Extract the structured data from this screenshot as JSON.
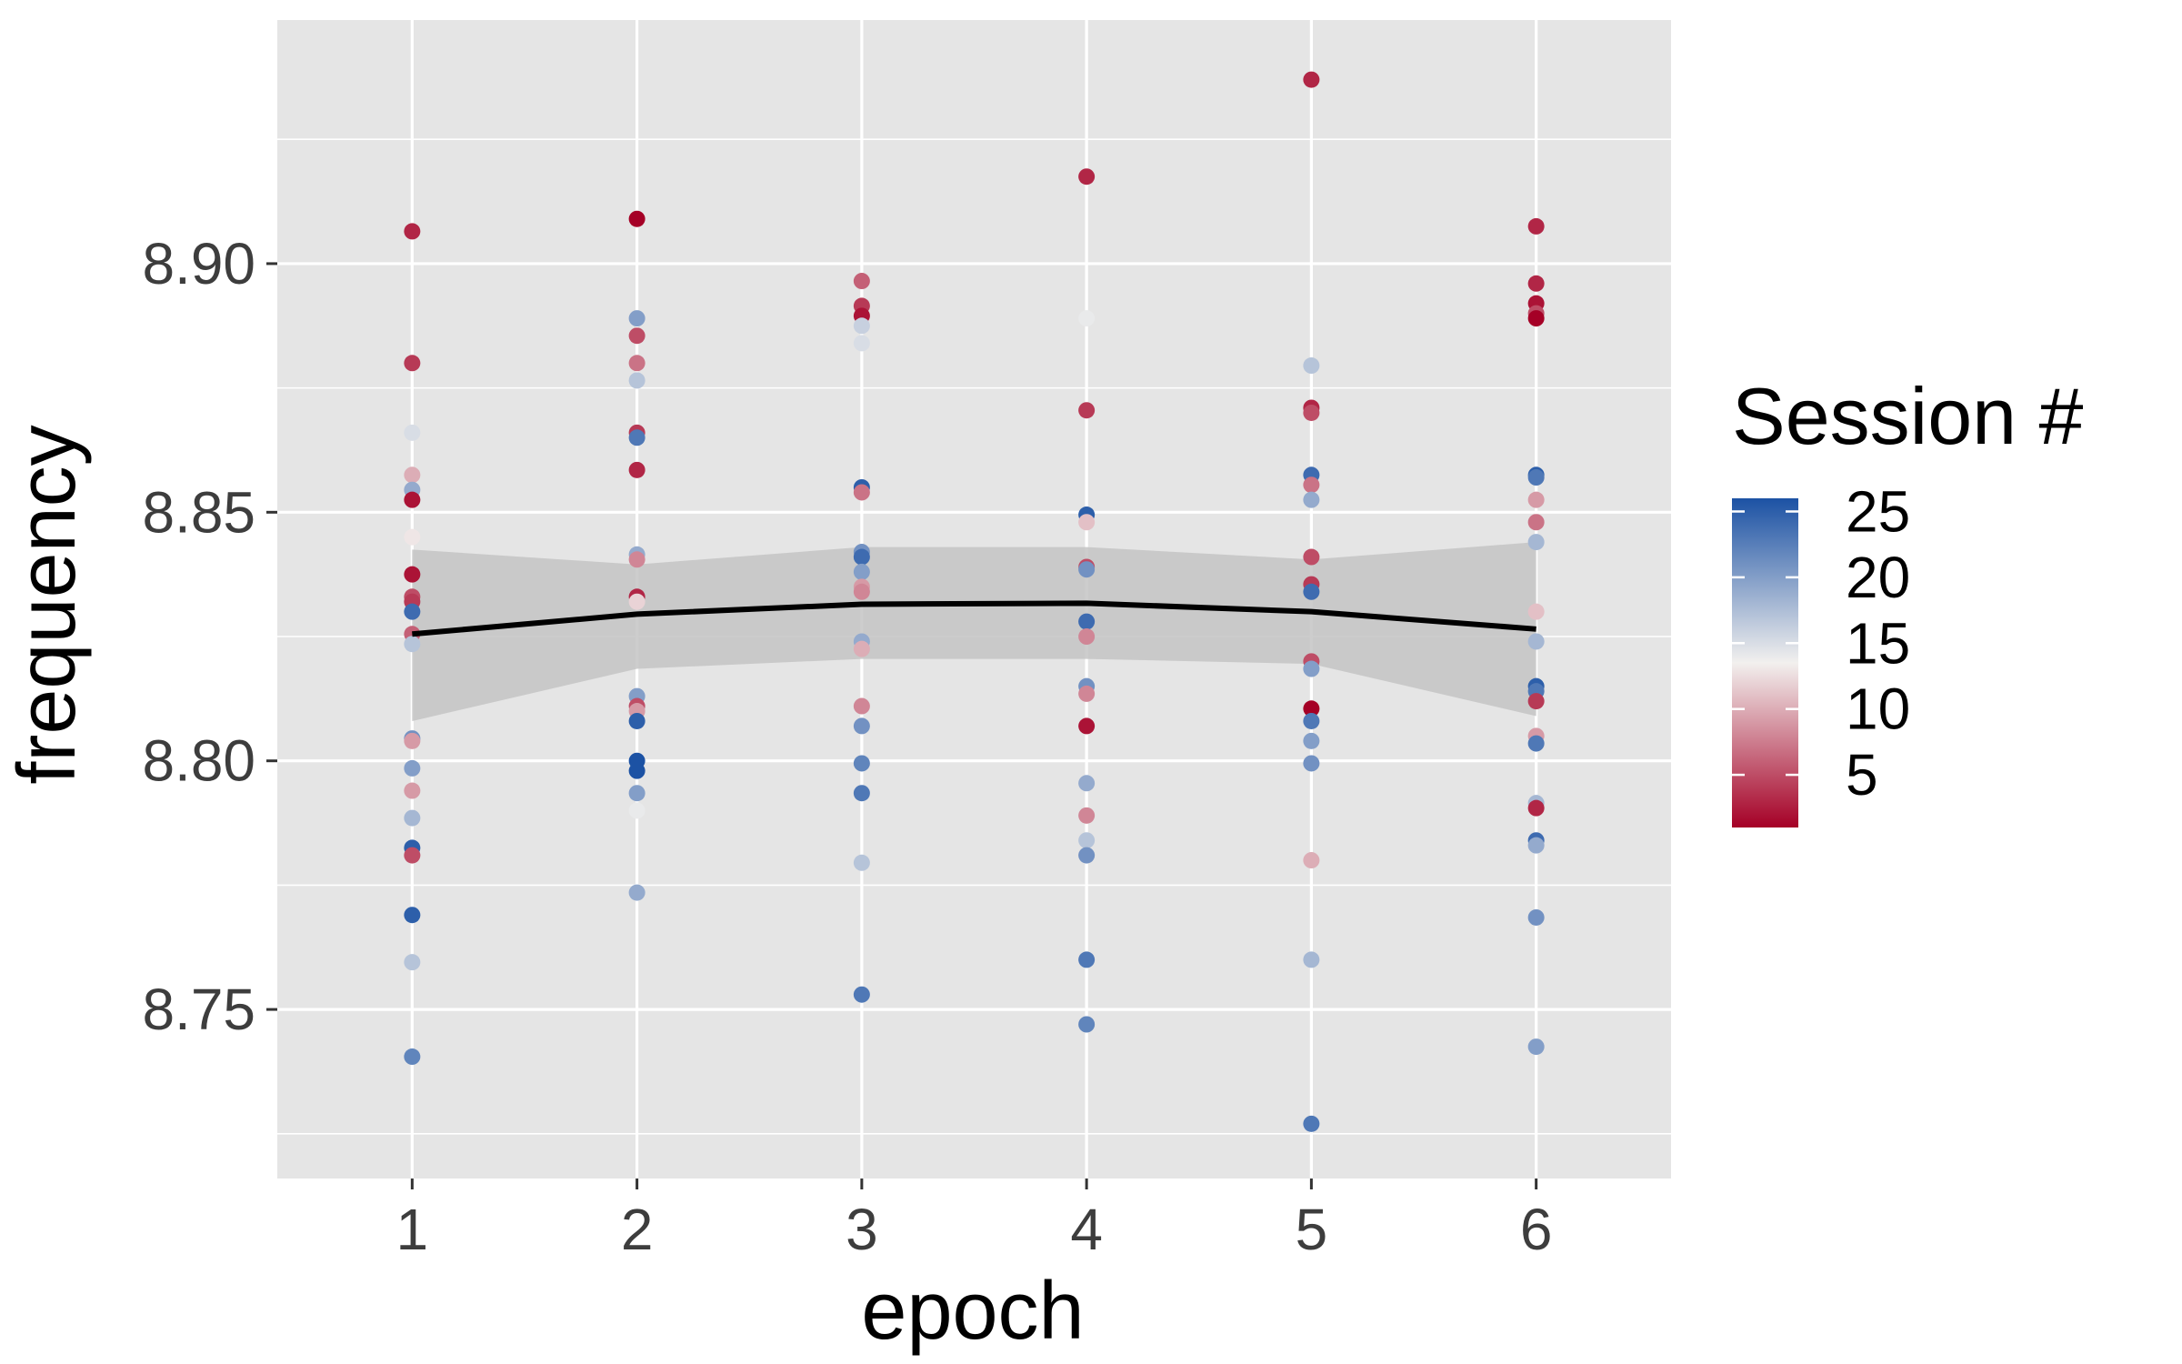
{
  "chart_data": {
    "type": "scatter",
    "xlabel": "epoch",
    "ylabel": "frequency",
    "x_ticks": [
      1,
      2,
      3,
      4,
      5,
      6
    ],
    "y_ticks": [
      "8.75",
      "8.80",
      "8.85",
      "8.90"
    ],
    "xlim": [
      0.4,
      6.6
    ],
    "ylim": [
      8.716,
      8.949
    ],
    "grid": true,
    "legend": {
      "title": "Session #",
      "labels": [
        "25",
        "20",
        "15",
        "10",
        "5"
      ],
      "label_values": [
        25,
        20,
        15,
        10,
        5
      ],
      "range": [
        1,
        26
      ],
      "colors": {
        "low": "#a50026",
        "mid": "#f2f0ee",
        "high": "#1c52a4"
      },
      "position": "right"
    },
    "colors": {
      "panel": "#e5e5e5",
      "grid": "#ffffff",
      "ribbon": "#c4c4c4",
      "line": "#000000"
    },
    "trend": {
      "x": [
        1,
        2,
        3,
        4,
        5,
        6
      ],
      "y": [
        8.8255,
        8.8295,
        8.8315,
        8.8317,
        8.83,
        8.8265
      ],
      "lower": [
        8.808,
        8.8185,
        8.8205,
        8.8205,
        8.8195,
        8.809
      ],
      "upper": [
        8.8425,
        8.8395,
        8.843,
        8.843,
        8.8405,
        8.844
      ]
    },
    "series": [
      {
        "x": 1,
        "points": [
          [
            8.9065,
            3
          ],
          [
            8.88,
            4
          ],
          [
            8.866,
            15
          ],
          [
            8.8575,
            10
          ],
          [
            8.8545,
            19
          ],
          [
            8.8525,
            2
          ],
          [
            8.845,
            13
          ],
          [
            8.8375,
            2
          ],
          [
            8.833,
            5
          ],
          [
            8.832,
            4
          ],
          [
            8.83,
            24
          ],
          [
            8.8255,
            6
          ],
          [
            8.8235,
            17
          ],
          [
            8.8045,
            21
          ],
          [
            8.804,
            9
          ],
          [
            8.7985,
            20
          ],
          [
            8.794,
            9
          ],
          [
            8.7885,
            18
          ],
          [
            8.7825,
            25
          ],
          [
            8.781,
            5
          ],
          [
            8.769,
            25
          ],
          [
            8.7595,
            17
          ],
          [
            8.7405,
            22
          ]
        ]
      },
      {
        "x": 2,
        "points": [
          [
            8.909,
            1
          ],
          [
            8.889,
            20
          ],
          [
            8.8855,
            5
          ],
          [
            8.88,
            7
          ],
          [
            8.8765,
            17
          ],
          [
            8.866,
            4
          ],
          [
            8.865,
            23
          ],
          [
            8.8585,
            3
          ],
          [
            8.8415,
            19
          ],
          [
            8.8405,
            8
          ],
          [
            8.833,
            3
          ],
          [
            8.832,
            12
          ],
          [
            8.813,
            20
          ],
          [
            8.811,
            5
          ],
          [
            8.81,
            9
          ],
          [
            8.808,
            25
          ],
          [
            8.8,
            26
          ],
          [
            8.798,
            26
          ],
          [
            8.7935,
            20
          ],
          [
            8.79,
            14
          ],
          [
            8.7735,
            19
          ]
        ]
      },
      {
        "x": 3,
        "points": [
          [
            8.8965,
            6
          ],
          [
            8.8915,
            4
          ],
          [
            8.8895,
            2
          ],
          [
            8.8875,
            16
          ],
          [
            8.884,
            15
          ],
          [
            8.855,
            25
          ],
          [
            8.854,
            7
          ],
          [
            8.842,
            21
          ],
          [
            8.841,
            24
          ],
          [
            8.838,
            20
          ],
          [
            8.835,
            9
          ],
          [
            8.834,
            8
          ],
          [
            8.824,
            19
          ],
          [
            8.8225,
            10
          ],
          [
            8.811,
            8
          ],
          [
            8.807,
            21
          ],
          [
            8.7995,
            22
          ],
          [
            8.7935,
            23
          ],
          [
            8.7795,
            17
          ],
          [
            8.753,
            23
          ]
        ]
      },
      {
        "x": 4,
        "points": [
          [
            8.9175,
            3
          ],
          [
            8.889,
            14
          ],
          [
            8.8705,
            4
          ],
          [
            8.8495,
            25
          ],
          [
            8.848,
            11
          ],
          [
            8.839,
            5
          ],
          [
            8.8385,
            21
          ],
          [
            8.828,
            24
          ],
          [
            8.825,
            8
          ],
          [
            8.815,
            21
          ],
          [
            8.8135,
            8
          ],
          [
            8.807,
            2
          ],
          [
            8.7955,
            19
          ],
          [
            8.789,
            8
          ],
          [
            8.784,
            17
          ],
          [
            8.781,
            21
          ],
          [
            8.76,
            23
          ],
          [
            8.747,
            22
          ]
        ]
      },
      {
        "x": 5,
        "points": [
          [
            8.937,
            3
          ],
          [
            8.8795,
            17
          ],
          [
            8.871,
            3
          ],
          [
            8.87,
            5
          ],
          [
            8.8575,
            24
          ],
          [
            8.8555,
            7
          ],
          [
            8.8525,
            19
          ],
          [
            8.841,
            5
          ],
          [
            8.8355,
            4
          ],
          [
            8.834,
            24
          ],
          [
            8.82,
            5
          ],
          [
            8.8185,
            20
          ],
          [
            8.8105,
            1
          ],
          [
            8.808,
            23
          ],
          [
            8.804,
            20
          ],
          [
            8.7995,
            21
          ],
          [
            8.78,
            10
          ],
          [
            8.76,
            18
          ],
          [
            8.727,
            23
          ]
        ]
      },
      {
        "x": 6,
        "points": [
          [
            8.9075,
            3
          ],
          [
            8.896,
            3
          ],
          [
            8.892,
            2
          ],
          [
            8.89,
            5
          ],
          [
            8.889,
            1
          ],
          [
            8.8575,
            25
          ],
          [
            8.857,
            23
          ],
          [
            8.8525,
            9
          ],
          [
            8.848,
            7
          ],
          [
            8.844,
            18
          ],
          [
            8.83,
            11
          ],
          [
            8.824,
            18
          ],
          [
            8.815,
            25
          ],
          [
            8.814,
            23
          ],
          [
            8.812,
            4
          ],
          [
            8.805,
            9
          ],
          [
            8.8035,
            23
          ],
          [
            8.7915,
            18
          ],
          [
            8.7905,
            3
          ],
          [
            8.784,
            24
          ],
          [
            8.783,
            19
          ],
          [
            8.7685,
            21
          ],
          [
            8.7425,
            20
          ]
        ]
      }
    ]
  }
}
